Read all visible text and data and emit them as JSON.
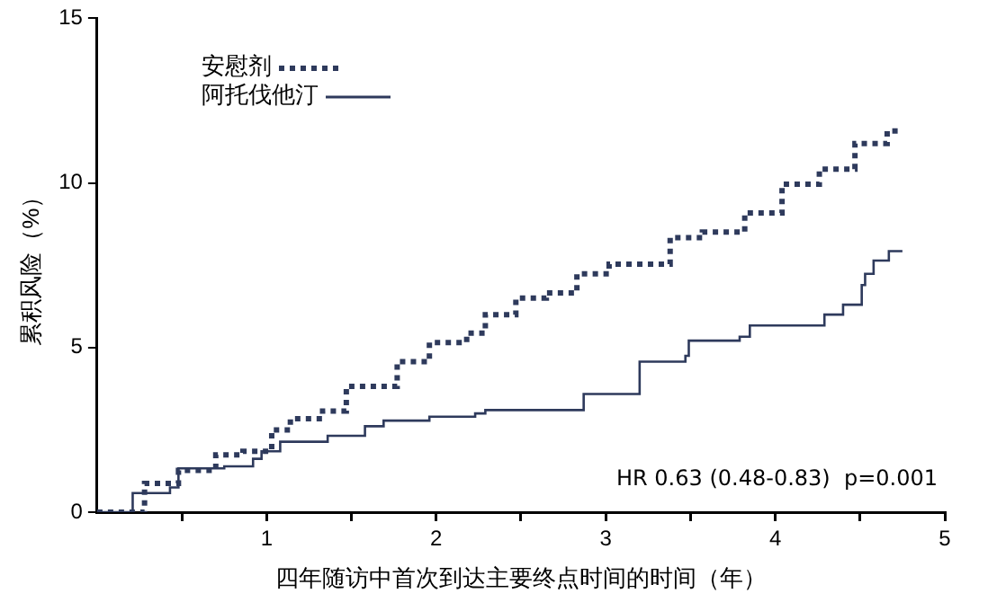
{
  "chart_data": {
    "type": "step",
    "xlabel": "四年随访中首次到达主要终点时间的时间（年）",
    "ylabel": "累积风险（%）",
    "xlim": [
      0,
      5
    ],
    "xticks": [
      {
        "value": 0.5,
        "label": null
      },
      1,
      {
        "value": 1.5,
        "label": null
      },
      2,
      {
        "value": 2.5,
        "label": null
      },
      3,
      {
        "value": 3.5,
        "label": null
      },
      4,
      {
        "value": 4.5,
        "label": null
      },
      5
    ],
    "ylim": [
      0,
      15
    ],
    "yticks": [
      0,
      5,
      10,
      15
    ],
    "grid": false,
    "legend": "top left",
    "annotations": [
      {
        "text": "HR 0.63 (0.48-0.83)  p=0.001"
      }
    ],
    "series": [
      {
        "name": "安慰剂",
        "color": "#2e3a5c",
        "line_style": "dotted",
        "x": [
          0,
          0.28,
          0.48,
          0.7,
          0.86,
          1.03,
          1.14,
          1.33,
          1.47,
          1.77,
          1.96,
          2.18,
          2.29,
          2.47,
          2.65,
          2.83,
          3.02,
          3.38,
          3.57,
          3.82,
          4.04,
          4.26,
          4.47,
          4.66,
          4.73
        ],
        "values": [
          0,
          0.87,
          1.27,
          1.74,
          1.85,
          2.5,
          2.84,
          3.07,
          3.82,
          4.57,
          5.15,
          5.44,
          6.0,
          6.5,
          6.66,
          7.24,
          7.53,
          8.34,
          8.51,
          9.09,
          9.96,
          10.42,
          11.2,
          11.58,
          11.5
        ]
      },
      {
        "name": "阿托伐他汀",
        "color": "#2e3a5c",
        "line_style": "solid",
        "x": [
          0,
          0.21,
          0.43,
          0.48,
          0.75,
          0.92,
          0.97,
          1.08,
          1.36,
          1.58,
          1.69,
          1.96,
          2.23,
          2.29,
          2.87,
          3.2,
          3.47,
          3.49,
          3.79,
          3.85,
          4.29,
          4.4,
          4.51,
          4.53,
          4.58,
          4.67,
          4.75
        ],
        "values": [
          0,
          0.58,
          0.75,
          1.33,
          1.39,
          1.62,
          1.85,
          2.14,
          2.32,
          2.61,
          2.78,
          2.9,
          3.0,
          3.1,
          3.59,
          4.57,
          4.75,
          5.21,
          5.33,
          5.67,
          6.0,
          6.3,
          6.9,
          7.24,
          7.64,
          7.93,
          7.93
        ]
      }
    ]
  }
}
